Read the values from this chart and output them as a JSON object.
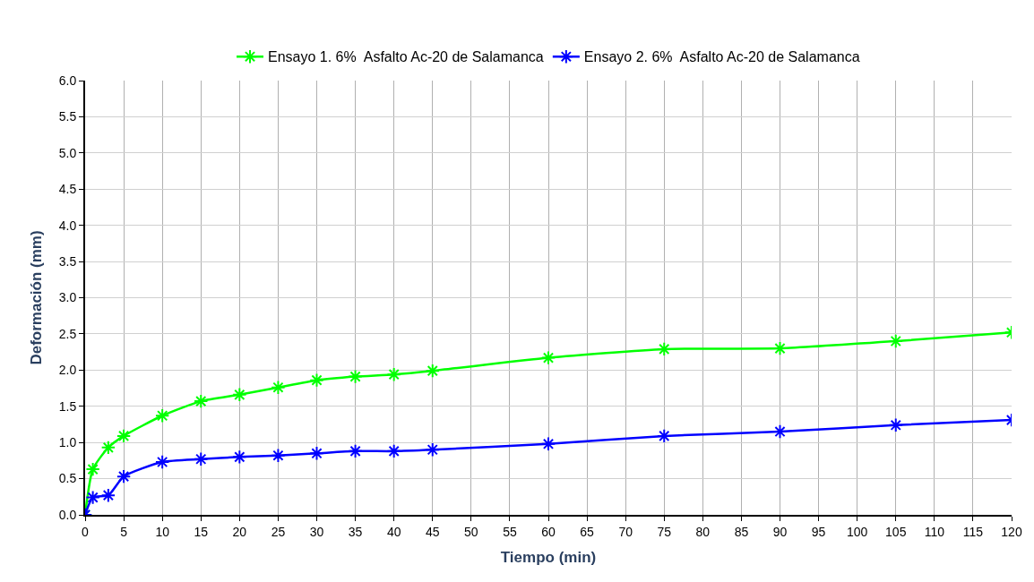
{
  "chart_data": {
    "type": "line",
    "xlabel": "Tiempo (min)",
    "ylabel": "Deformación (mm)",
    "x": [
      0,
      1,
      3,
      5,
      10,
      15,
      20,
      25,
      30,
      35,
      40,
      45,
      60,
      75,
      90,
      105,
      120
    ],
    "series": [
      {
        "name": "Ensayo 1. 6%  Asfalto Ac-20 de Salamanca",
        "color": "#00ff00",
        "values": [
          0,
          0.63,
          0.93,
          1.09,
          1.37,
          1.57,
          1.66,
          1.76,
          1.86,
          1.91,
          1.94,
          1.99,
          2.17,
          2.29,
          2.3,
          2.4,
          2.52
        ]
      },
      {
        "name": "Ensayo 2. 6%  Asfalto Ac-20 de Salamanca",
        "color": "#0000ff",
        "values": [
          0,
          0.24,
          0.27,
          0.53,
          0.73,
          0.77,
          0.8,
          0.82,
          0.85,
          0.88,
          0.88,
          0.9,
          0.98,
          1.09,
          1.15,
          1.24,
          1.31
        ]
      }
    ],
    "xlim": [
      0,
      120
    ],
    "xticks": [
      0,
      5,
      10,
      15,
      20,
      25,
      30,
      35,
      40,
      45,
      50,
      55,
      60,
      65,
      70,
      75,
      80,
      85,
      90,
      95,
      100,
      105,
      110,
      115,
      120
    ],
    "ylim": [
      0,
      6
    ],
    "yticks": [
      {
        "value": 0,
        "label": "0.0"
      },
      {
        "value": 0.5,
        "label": "0.5"
      },
      {
        "value": 1,
        "label": "1.0"
      },
      {
        "value": 1.5,
        "label": "1.5"
      },
      {
        "value": 2,
        "label": "2.0"
      },
      {
        "value": 2.5,
        "label": "2.5"
      },
      {
        "value": 3,
        "label": "3.0"
      },
      {
        "value": 3.5,
        "label": "3.5"
      },
      {
        "value": 4,
        "label": "4.0"
      },
      {
        "value": 4.5,
        "label": "4.5"
      },
      {
        "value": 5,
        "label": "5.0"
      },
      {
        "value": 5.5,
        "label": "5.5"
      },
      {
        "value": 6,
        "label": "6.0"
      }
    ],
    "grid": true,
    "legend": "top",
    "marker": "cross",
    "line_style": "solid"
  }
}
